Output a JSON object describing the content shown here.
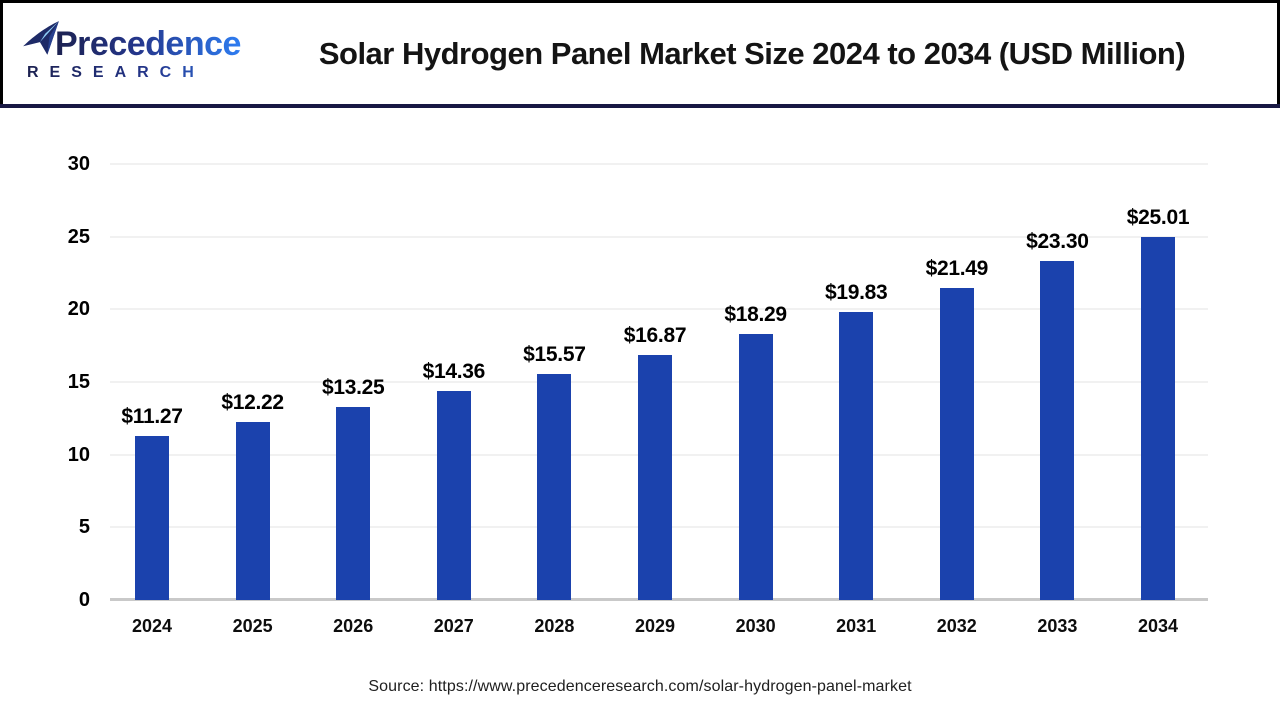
{
  "header": {
    "logo": {
      "name": "Precedence",
      "subname": "RESEARCH"
    },
    "title": "Solar Hydrogen Panel Market Size 2024 to 2034 (USD Million)"
  },
  "chart_data": {
    "type": "bar",
    "title": "Solar Hydrogen Panel Market Size 2024 to 2034 (USD Million)",
    "categories": [
      "2024",
      "2025",
      "2026",
      "2027",
      "2028",
      "2029",
      "2030",
      "2031",
      "2032",
      "2033",
      "2034"
    ],
    "values": [
      11.27,
      12.22,
      13.25,
      14.36,
      15.57,
      16.87,
      18.29,
      19.83,
      21.49,
      23.3,
      25.01
    ],
    "value_labels": [
      "$11.27",
      "$12.22",
      "$13.25",
      "$14.36",
      "$15.57",
      "$16.87",
      "$18.29",
      "$19.83",
      "$21.49",
      "$23.30",
      "$25.01"
    ],
    "xlabel": "",
    "ylabel": "",
    "y_ticks": [
      0,
      5,
      10,
      15,
      20,
      25,
      30
    ],
    "ylim": [
      0,
      30
    ],
    "grid": "horizontal",
    "legend": "none",
    "bar_color": "#1b42ad"
  },
  "footer": {
    "source": "Source: https://www.precedenceresearch.com/solar-hydrogen-panel-market"
  },
  "colors": {
    "bar": "#1b42ad",
    "separator_line": "#181843",
    "gridline": "#f1f1f1",
    "axis_line": "#c9c9c9",
    "logo_dark": "#1c2150",
    "logo_light": "#2e7df2"
  }
}
